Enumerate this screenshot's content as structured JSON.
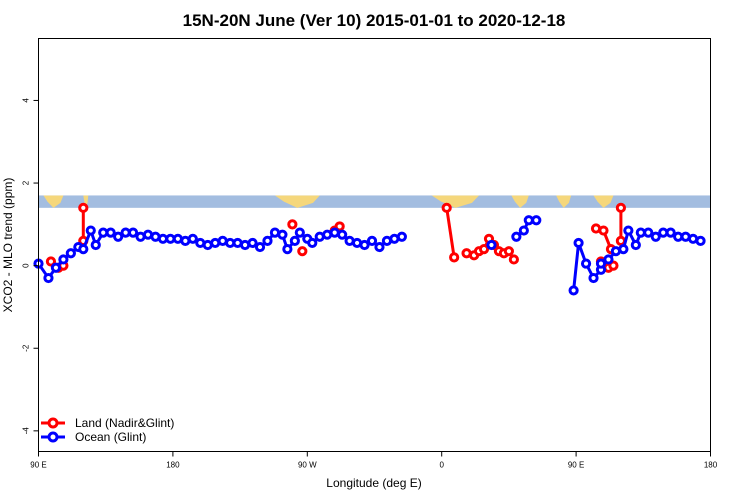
{
  "chart_data": {
    "type": "line",
    "title": "15N-20N June (Ver 10)   2015-01-01 to 2020-12-18",
    "xlabel": "Longitude (deg E)",
    "ylabel": "XCO2 - MLO trend (ppm)",
    "xlim": [
      -90,
      180
    ],
    "ylim": [
      -4.5,
      5.5
    ],
    "x_ticks": [
      {
        "value": -90,
        "label": "90 E"
      },
      {
        "value": -36,
        "label": "180"
      },
      {
        "value": 18,
        "label": "90 W"
      },
      {
        "value": 72,
        "label": "0"
      },
      {
        "value": 126,
        "label": "90 E"
      },
      {
        "value": 180,
        "label": "180"
      }
    ],
    "y_ticks": [
      {
        "value": -4,
        "label": "-4"
      },
      {
        "value": -2,
        "label": "-2"
      },
      {
        "value": 0,
        "label": "0"
      },
      {
        "value": 2,
        "label": "2"
      },
      {
        "value": 4,
        "label": "4"
      }
    ],
    "map_band": {
      "y_min": 1.4,
      "y_max": 1.7,
      "ocean_color": "#a3bde0",
      "land_color": "#f5d77c"
    },
    "legend_position": "bottom-left",
    "series": [
      {
        "name": "Land (Nadir&Glint)",
        "color": "#ff0000",
        "segments": [
          [
            [
              -85,
              0.1
            ],
            [
              -82,
              -0.05
            ],
            [
              -80,
              0.0
            ]
          ],
          [
            [
              -72,
              1.4
            ],
            [
              -72,
              0.6
            ]
          ],
          [
            [
              12,
              1.0
            ]
          ],
          [
            [
              16,
              0.35
            ]
          ],
          [
            [
              29,
              0.85
            ],
            [
              31,
              0.95
            ]
          ],
          [
            [
              74,
              1.4
            ],
            [
              77,
              0.2
            ]
          ],
          [
            [
              82,
              0.3
            ],
            [
              85,
              0.25
            ],
            [
              87,
              0.35
            ],
            [
              89,
              0.4
            ],
            [
              91,
              0.65
            ],
            [
              93,
              0.5
            ],
            [
              95,
              0.35
            ],
            [
              97,
              0.3
            ],
            [
              99,
              0.35
            ],
            [
              101,
              0.15
            ]
          ],
          [
            [
              134,
              0.9
            ],
            [
              137,
              0.85
            ],
            [
              140,
              0.4
            ]
          ],
          [
            [
              136,
              0.1
            ],
            [
              139,
              -0.05
            ],
            [
              141,
              0.0
            ]
          ],
          [
            [
              144,
              1.4
            ],
            [
              144,
              0.6
            ]
          ]
        ]
      },
      {
        "name": "Ocean (Glint)",
        "color": "#0000ff",
        "segments": [
          [
            [
              -90,
              0.05
            ],
            [
              -86,
              -0.3
            ],
            [
              -83,
              -0.05
            ],
            [
              -80,
              0.15
            ],
            [
              -77,
              0.3
            ],
            [
              -74,
              0.45
            ],
            [
              -72,
              0.4
            ],
            [
              -69,
              0.85
            ],
            [
              -67,
              0.5
            ],
            [
              -64,
              0.8
            ],
            [
              -61,
              0.8
            ],
            [
              -58,
              0.7
            ],
            [
              -55,
              0.8
            ],
            [
              -52,
              0.8
            ],
            [
              -49,
              0.7
            ],
            [
              -46,
              0.75
            ],
            [
              -43,
              0.7
            ],
            [
              -40,
              0.65
            ],
            [
              -37,
              0.65
            ],
            [
              -34,
              0.65
            ],
            [
              -31,
              0.6
            ],
            [
              -28,
              0.65
            ],
            [
              -25,
              0.55
            ],
            [
              -22,
              0.5
            ],
            [
              -19,
              0.55
            ],
            [
              -16,
              0.6
            ],
            [
              -13,
              0.55
            ],
            [
              -10,
              0.55
            ],
            [
              -7,
              0.5
            ],
            [
              -4,
              0.55
            ],
            [
              -1,
              0.45
            ],
            [
              2,
              0.6
            ],
            [
              5,
              0.8
            ],
            [
              8,
              0.75
            ],
            [
              10,
              0.4
            ],
            [
              13,
              0.6
            ],
            [
              15,
              0.8
            ],
            [
              18,
              0.65
            ],
            [
              20,
              0.55
            ],
            [
              23,
              0.7
            ],
            [
              26,
              0.75
            ],
            [
              29,
              0.8
            ],
            [
              32,
              0.75
            ],
            [
              35,
              0.6
            ],
            [
              38,
              0.55
            ],
            [
              41,
              0.5
            ],
            [
              44,
              0.6
            ],
            [
              47,
              0.45
            ],
            [
              50,
              0.6
            ],
            [
              53,
              0.65
            ],
            [
              56,
              0.7
            ]
          ],
          [
            [
              92,
              0.5
            ]
          ],
          [
            [
              102,
              0.7
            ],
            [
              105,
              0.85
            ],
            [
              107,
              1.1
            ],
            [
              110,
              1.1
            ]
          ],
          [
            [
              125,
              -0.6
            ],
            [
              127,
              0.55
            ],
            [
              130,
              0.05
            ],
            [
              133,
              -0.3
            ],
            [
              136,
              -0.1
            ]
          ],
          [
            [
              136,
              0.05
            ],
            [
              139,
              0.15
            ],
            [
              142,
              0.35
            ],
            [
              145,
              0.4
            ],
            [
              147,
              0.85
            ],
            [
              150,
              0.5
            ],
            [
              152,
              0.8
            ],
            [
              155,
              0.8
            ],
            [
              158,
              0.7
            ],
            [
              161,
              0.8
            ],
            [
              164,
              0.8
            ],
            [
              167,
              0.7
            ],
            [
              170,
              0.7
            ],
            [
              173,
              0.65
            ],
            [
              176,
              0.6
            ]
          ]
        ]
      }
    ]
  }
}
